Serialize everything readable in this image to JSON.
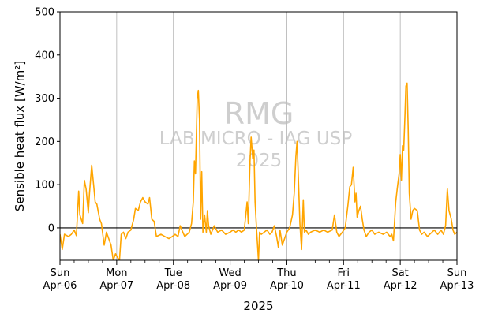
{
  "chart_data": {
    "type": "line",
    "title": "",
    "xlabel": "2025",
    "ylabel": "Sensible heat flux [W/m²]",
    "ylim": [
      -75,
      500
    ],
    "y_ticks": [
      0,
      100,
      200,
      300,
      400,
      500
    ],
    "xlim": [
      0,
      7
    ],
    "x_unit": "days since Sun Apr-06 2025 00:00",
    "x_ticks": [
      {
        "day": "Sun",
        "date": "Apr-06"
      },
      {
        "day": "Mon",
        "date": "Apr-07"
      },
      {
        "day": "Tue",
        "date": "Apr-08"
      },
      {
        "day": "Wed",
        "date": "Apr-09"
      },
      {
        "day": "Thu",
        "date": "Apr-10"
      },
      {
        "day": "Fri",
        "date": "Apr-11"
      },
      {
        "day": "Sat",
        "date": "Apr-12"
      },
      {
        "day": "Sun",
        "date": "Apr-13"
      }
    ],
    "grid": "vertical at day boundaries",
    "zero_line": true,
    "watermark": {
      "line1": "RMG",
      "line2": "LAB MICRO - IAG USP",
      "line3": "2025"
    },
    "series": [
      {
        "color": "#ffa500",
        "points": [
          [
            0.0,
            -15
          ],
          [
            0.04,
            -50
          ],
          [
            0.08,
            -15
          ],
          [
            0.15,
            -20
          ],
          [
            0.2,
            -15
          ],
          [
            0.25,
            -5
          ],
          [
            0.29,
            -18
          ],
          [
            0.33,
            85
          ],
          [
            0.35,
            30
          ],
          [
            0.4,
            10
          ],
          [
            0.43,
            110
          ],
          [
            0.46,
            90
          ],
          [
            0.5,
            35
          ],
          [
            0.52,
            80
          ],
          [
            0.56,
            145
          ],
          [
            0.6,
            90
          ],
          [
            0.62,
            60
          ],
          [
            0.65,
            55
          ],
          [
            0.7,
            20
          ],
          [
            0.73,
            10
          ],
          [
            0.78,
            -40
          ],
          [
            0.82,
            -10
          ],
          [
            0.86,
            -25
          ],
          [
            0.9,
            -40
          ],
          [
            0.94,
            -75
          ],
          [
            0.98,
            -60
          ],
          [
            1.02,
            -70
          ],
          [
            1.05,
            -75
          ],
          [
            1.08,
            -15
          ],
          [
            1.12,
            -10
          ],
          [
            1.16,
            -25
          ],
          [
            1.2,
            -10
          ],
          [
            1.25,
            -5
          ],
          [
            1.3,
            20
          ],
          [
            1.33,
            45
          ],
          [
            1.38,
            40
          ],
          [
            1.42,
            60
          ],
          [
            1.46,
            70
          ],
          [
            1.5,
            60
          ],
          [
            1.55,
            55
          ],
          [
            1.58,
            70
          ],
          [
            1.62,
            20
          ],
          [
            1.66,
            15
          ],
          [
            1.7,
            -20
          ],
          [
            1.78,
            -15
          ],
          [
            1.85,
            -20
          ],
          [
            1.92,
            -25
          ],
          [
            1.98,
            -20
          ],
          [
            2.03,
            -15
          ],
          [
            2.08,
            -20
          ],
          [
            2.12,
            5
          ],
          [
            2.15,
            -5
          ],
          [
            2.2,
            -20
          ],
          [
            2.28,
            -10
          ],
          [
            2.32,
            10
          ],
          [
            2.35,
            60
          ],
          [
            2.37,
            155
          ],
          [
            2.39,
            125
          ],
          [
            2.42,
            300
          ],
          [
            2.44,
            318
          ],
          [
            2.46,
            250
          ],
          [
            2.48,
            20
          ],
          [
            2.5,
            130
          ],
          [
            2.52,
            -10
          ],
          [
            2.55,
            30
          ],
          [
            2.58,
            -10
          ],
          [
            2.6,
            40
          ],
          [
            2.62,
            5
          ],
          [
            2.66,
            -15
          ],
          [
            2.72,
            5
          ],
          [
            2.78,
            -10
          ],
          [
            2.85,
            -5
          ],
          [
            2.92,
            -15
          ],
          [
            3.0,
            -10
          ],
          [
            3.05,
            -5
          ],
          [
            3.1,
            -10
          ],
          [
            3.15,
            -5
          ],
          [
            3.2,
            -10
          ],
          [
            3.25,
            -5
          ],
          [
            3.3,
            60
          ],
          [
            3.32,
            10
          ],
          [
            3.35,
            150
          ],
          [
            3.37,
            210
          ],
          [
            3.4,
            160
          ],
          [
            3.42,
            180
          ],
          [
            3.44,
            60
          ],
          [
            3.47,
            -10
          ],
          [
            3.5,
            -75
          ],
          [
            3.52,
            -10
          ],
          [
            3.55,
            -15
          ],
          [
            3.6,
            -10
          ],
          [
            3.65,
            -5
          ],
          [
            3.7,
            -15
          ],
          [
            3.74,
            -10
          ],
          [
            3.78,
            5
          ],
          [
            3.82,
            -20
          ],
          [
            3.85,
            -45
          ],
          [
            3.88,
            -5
          ],
          [
            3.92,
            -40
          ],
          [
            4.0,
            -10
          ],
          [
            4.05,
            0
          ],
          [
            4.1,
            30
          ],
          [
            4.13,
            80
          ],
          [
            4.16,
            165
          ],
          [
            4.18,
            200
          ],
          [
            4.2,
            130
          ],
          [
            4.23,
            10
          ],
          [
            4.26,
            -50
          ],
          [
            4.29,
            65
          ],
          [
            4.31,
            -10
          ],
          [
            4.34,
            -5
          ],
          [
            4.38,
            -15
          ],
          [
            4.42,
            -10
          ],
          [
            4.5,
            -5
          ],
          [
            4.58,
            -10
          ],
          [
            4.65,
            -5
          ],
          [
            4.72,
            -10
          ],
          [
            4.8,
            -5
          ],
          [
            4.84,
            30
          ],
          [
            4.88,
            -10
          ],
          [
            4.92,
            -20
          ],
          [
            4.98,
            -10
          ],
          [
            5.03,
            0
          ],
          [
            5.08,
            55
          ],
          [
            5.11,
            95
          ],
          [
            5.14,
            100
          ],
          [
            5.17,
            140
          ],
          [
            5.2,
            60
          ],
          [
            5.22,
            80
          ],
          [
            5.24,
            25
          ],
          [
            5.27,
            40
          ],
          [
            5.3,
            50
          ],
          [
            5.33,
            20
          ],
          [
            5.36,
            -5
          ],
          [
            5.4,
            -20
          ],
          [
            5.45,
            -10
          ],
          [
            5.5,
            -5
          ],
          [
            5.55,
            -15
          ],
          [
            5.62,
            -10
          ],
          [
            5.7,
            -15
          ],
          [
            5.76,
            -10
          ],
          [
            5.82,
            -20
          ],
          [
            5.85,
            -15
          ],
          [
            5.88,
            -30
          ],
          [
            5.92,
            60
          ],
          [
            5.95,
            95
          ],
          [
            5.98,
            125
          ],
          [
            6.0,
            170
          ],
          [
            6.02,
            110
          ],
          [
            6.04,
            190
          ],
          [
            6.06,
            180
          ],
          [
            6.08,
            250
          ],
          [
            6.1,
            328
          ],
          [
            6.12,
            335
          ],
          [
            6.14,
            230
          ],
          [
            6.16,
            80
          ],
          [
            6.19,
            20
          ],
          [
            6.22,
            40
          ],
          [
            6.25,
            45
          ],
          [
            6.3,
            40
          ],
          [
            6.34,
            -5
          ],
          [
            6.38,
            -15
          ],
          [
            6.42,
            -10
          ],
          [
            6.48,
            -20
          ],
          [
            6.52,
            -15
          ],
          [
            6.56,
            -10
          ],
          [
            6.6,
            -5
          ],
          [
            6.66,
            -15
          ],
          [
            6.72,
            -5
          ],
          [
            6.76,
            -15
          ],
          [
            6.8,
            5
          ],
          [
            6.83,
            90
          ],
          [
            6.86,
            40
          ],
          [
            6.9,
            20
          ],
          [
            6.93,
            -5
          ],
          [
            6.96,
            -15
          ],
          [
            7.0,
            -10
          ]
        ]
      }
    ]
  }
}
